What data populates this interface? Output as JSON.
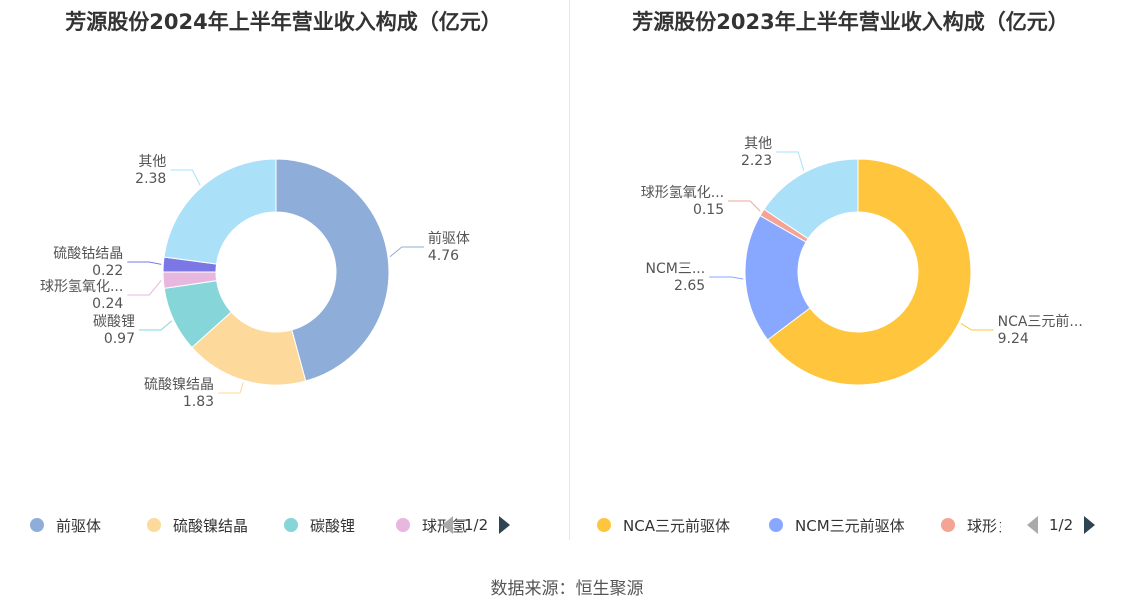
{
  "chart_data": [
    {
      "type": "pie",
      "variant": "donut",
      "title": "芳源股份2024年上半年营业收入构成（亿元）",
      "slices": [
        {
          "label": "前驱体",
          "full_name": "前驱体",
          "value": 4.76,
          "color": "#8fadd9"
        },
        {
          "label": "硫酸镍结晶",
          "full_name": "硫酸镍结晶",
          "value": 1.83,
          "color": "#fdd99b"
        },
        {
          "label": "碳酸锂",
          "full_name": "碳酸锂",
          "value": 0.97,
          "color": "#86d6d9"
        },
        {
          "label": "球形氢氧化...",
          "full_name": "球形氢氧化...",
          "value": 0.24,
          "color": "#e8b7e0"
        },
        {
          "label": "硫酸钴结晶",
          "full_name": "硫酸钴结晶",
          "value": 0.22,
          "color": "#7b78e6"
        },
        {
          "label": "其他",
          "full_name": "其他",
          "value": 2.38,
          "color": "#aae0f8"
        }
      ],
      "legend": {
        "position": "bottom",
        "items": [
          "前驱体",
          "硫酸镍结晶",
          "碳酸锂",
          "球形氢"
        ],
        "page": "1/2"
      }
    },
    {
      "type": "pie",
      "variant": "donut",
      "title": "芳源股份2023年上半年营业收入构成（亿元）",
      "slices": [
        {
          "label": "NCA三元前...",
          "full_name": "NCA三元前驱体",
          "value": 9.24,
          "color": "#ffc53d"
        },
        {
          "label": "NCM三...",
          "full_name": "NCM三元前驱体",
          "value": 2.65,
          "color": "#88a7ff"
        },
        {
          "label": "球形氢氧化...",
          "full_name": "球形氢氧化...",
          "value": 0.15,
          "color": "#f5a394"
        },
        {
          "label": "其他",
          "full_name": "其他",
          "value": 2.23,
          "color": "#aae0f8"
        }
      ],
      "legend": {
        "position": "bottom",
        "items": [
          "NCA三元前驱体",
          "NCM三元前驱体",
          "球形彡"
        ],
        "page": "1/2"
      }
    }
  ],
  "footer": {
    "source": "数据来源：恒生聚源"
  }
}
